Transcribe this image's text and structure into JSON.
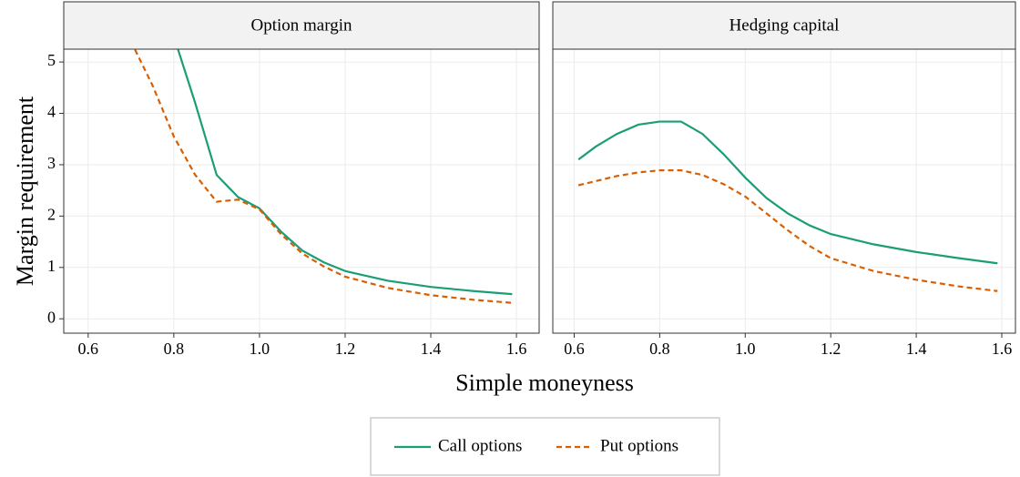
{
  "axis_labels": {
    "y": "Margin requirement",
    "x": "Simple moneyness"
  },
  "chart_data": [
    {
      "type": "line",
      "title": "Option margin",
      "x": [
        0.61,
        0.65,
        0.7,
        0.75,
        0.8,
        0.85,
        0.9,
        0.95,
        1.0,
        1.05,
        1.1,
        1.15,
        1.2,
        1.3,
        1.4,
        1.5,
        1.59
      ],
      "series": [
        {
          "name": "Call options",
          "color": "#1b9e77",
          "dash": "solid",
          "values": [
            null,
            null,
            null,
            null,
            5.5,
            4.2,
            2.8,
            2.37,
            2.15,
            1.7,
            1.33,
            1.1,
            0.93,
            0.74,
            0.62,
            0.54,
            0.48
          ]
        },
        {
          "name": "Put options",
          "color": "#d95f02",
          "dash": "dashed",
          "values": [
            null,
            null,
            5.4,
            4.55,
            3.55,
            2.8,
            2.28,
            2.32,
            2.13,
            1.65,
            1.27,
            1.02,
            0.82,
            0.6,
            0.46,
            0.37,
            0.31
          ]
        }
      ],
      "xlim": [
        0.543,
        1.653
      ],
      "ylim": [
        -0.28,
        5.25
      ],
      "xticks": [
        0.6,
        0.8,
        {
          "value": 1,
          "label": "1.0"
        },
        1.2,
        1.4,
        1.6
      ],
      "yticks": [
        0,
        1,
        2,
        3,
        4,
        5
      ],
      "grid": true
    },
    {
      "type": "line",
      "title": "Hedging capital",
      "x": [
        0.61,
        0.65,
        0.7,
        0.75,
        0.8,
        0.85,
        0.9,
        0.95,
        1.0,
        1.05,
        1.1,
        1.15,
        1.2,
        1.3,
        1.4,
        1.5,
        1.59
      ],
      "series": [
        {
          "name": "Call options",
          "color": "#1b9e77",
          "dash": "solid",
          "values": [
            3.1,
            3.35,
            3.6,
            3.78,
            3.84,
            3.84,
            3.6,
            3.2,
            2.75,
            2.35,
            2.05,
            1.82,
            1.65,
            1.45,
            1.3,
            1.18,
            1.08
          ]
        },
        {
          "name": "Put options",
          "color": "#d95f02",
          "dash": "dashed",
          "values": [
            2.6,
            2.68,
            2.78,
            2.85,
            2.89,
            2.89,
            2.8,
            2.62,
            2.38,
            2.05,
            1.72,
            1.42,
            1.18,
            0.93,
            0.76,
            0.63,
            0.54
          ]
        }
      ],
      "xlim": [
        0.55,
        1.632
      ],
      "ylim": [
        -0.28,
        5.25
      ],
      "xticks": [
        0.6,
        0.8,
        {
          "value": 1,
          "label": "1.0"
        },
        1.2,
        1.4,
        1.6
      ],
      "yticks": [
        0,
        1,
        2,
        3,
        4,
        5
      ],
      "grid": true
    }
  ]
}
